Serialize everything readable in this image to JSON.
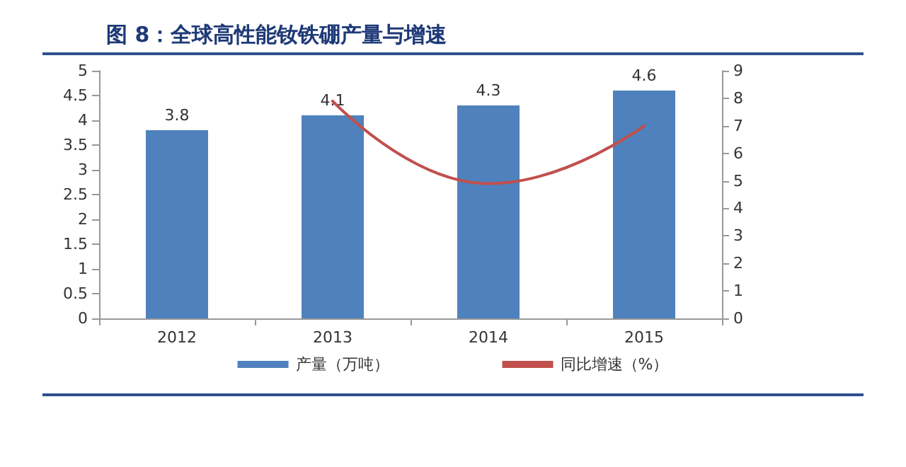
{
  "chart_data": {
    "type": "bar",
    "title": "图 8：全球高性能钕铁硼产量与增速",
    "categories": [
      "2012",
      "2013",
      "2014",
      "2015"
    ],
    "series": [
      {
        "name": "产量（万吨）",
        "color": "#4f81bd",
        "values": [
          3.8,
          4.1,
          4.3,
          4.6
        ],
        "data_labels": true
      },
      {
        "name": "同比增速（%）",
        "type": "line",
        "color": "#c0504d",
        "axis": "y2",
        "values": [
          null,
          7.9,
          4.9,
          7.0
        ],
        "marker": "none"
      }
    ],
    "ylim": [
      0,
      5
    ],
    "yticks": [
      0,
      0.5,
      1,
      1.5,
      2,
      2.5,
      3,
      3.5,
      4,
      4.5,
      5
    ],
    "y2lim": [
      0,
      9
    ],
    "y2ticks": [
      0,
      1,
      2,
      3,
      4,
      5,
      6,
      7,
      8,
      9
    ],
    "grid": false,
    "legend": "bottom"
  }
}
